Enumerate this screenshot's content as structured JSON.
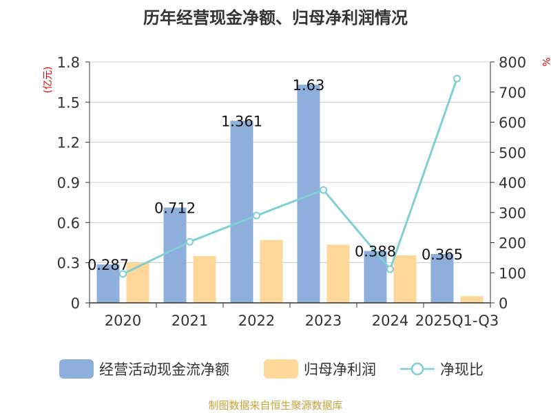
{
  "title": "历年经营现金净额、归母净利润情况",
  "source": "制图数据来自恒生聚源数据库",
  "colors": {
    "bar1": "#8eaedb",
    "bar2": "#fdd898",
    "line": "#7fd0d4",
    "axis_unit": "#e00000",
    "grid": "#cccccc",
    "text": "#333333"
  },
  "chart_data": {
    "type": "bar",
    "title": "历年经营现金净额、归母净利润情况",
    "categories": [
      "2020",
      "2021",
      "2022",
      "2023",
      "2024",
      "2025Q1-Q3"
    ],
    "left_axis": {
      "unit": "(亿元)",
      "ylim": [
        0,
        1.8
      ],
      "ticks": [
        "0",
        "0.3",
        "0.6",
        "0.9",
        "1.2",
        "1.5",
        "1.8"
      ]
    },
    "right_axis": {
      "unit": "%",
      "ylim": [
        0,
        800
      ],
      "ticks": [
        "0",
        "100",
        "200",
        "300",
        "400",
        "500",
        "600",
        "700",
        "800"
      ]
    },
    "series": [
      {
        "name": "经营活动现金流净额",
        "axis": "left",
        "type": "bar",
        "values": [
          0.287,
          0.712,
          1.361,
          1.63,
          0.388,
          0.365
        ],
        "labels": [
          "0.287",
          "0.712",
          "1.361",
          "1.63",
          "0.388",
          "0.365"
        ]
      },
      {
        "name": "归母净利润",
        "axis": "left",
        "type": "bar",
        "values": [
          0.3,
          0.35,
          0.47,
          0.435,
          0.355,
          0.05
        ]
      },
      {
        "name": "净现比",
        "axis": "right",
        "type": "line",
        "values": [
          96,
          203,
          290,
          375,
          112,
          745
        ]
      }
    ],
    "grid": true,
    "legend_position": "bottom"
  }
}
